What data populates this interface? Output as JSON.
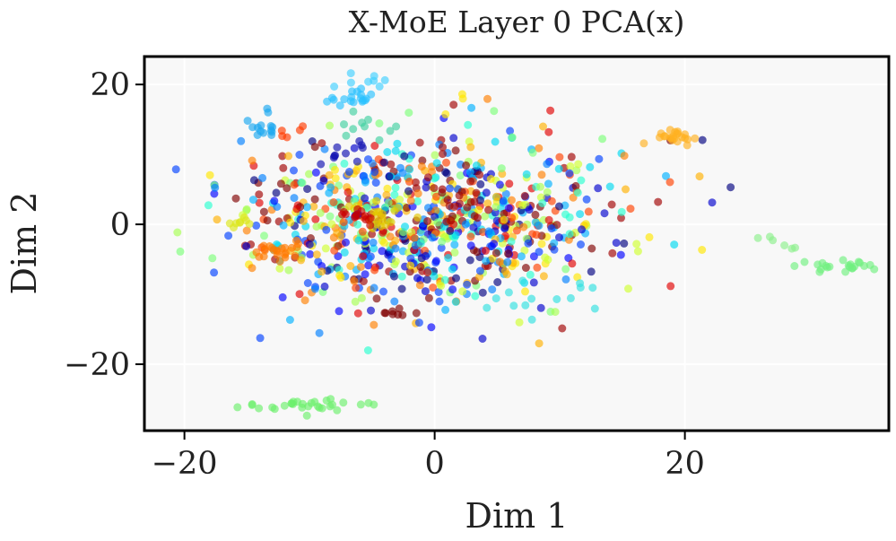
{
  "chart_data": {
    "type": "scatter",
    "title": "X-MoE  Layer 0  PCA(x)",
    "xlabel": "Dim 1",
    "ylabel": "Dim 2",
    "xlim": [
      -23.2,
      36.3
    ],
    "ylim": [
      -29.5,
      24.0
    ],
    "xticks": [
      -20,
      0,
      20
    ],
    "yticks": [
      -20,
      0,
      20
    ],
    "xtick_labels": [
      "−20",
      "0",
      "20"
    ],
    "ytick_labels": [
      "−20",
      "0",
      "20"
    ],
    "grid": true,
    "background": "#f8f8f8",
    "colormap": "jet",
    "point_alpha": 0.65,
    "clusters": [
      {
        "cx": -10,
        "cy": -26,
        "sx": 2.6,
        "sy": 0.6,
        "n": 30,
        "color": "#6cf06c"
      },
      {
        "cx": 32,
        "cy": -5.8,
        "sx": 1.5,
        "sy": 0.7,
        "n": 22,
        "color": "#70f080"
      },
      {
        "cx": 28.5,
        "cy": -2.8,
        "sx": 1.2,
        "sy": 0.5,
        "n": 6,
        "color": "#8cf08c"
      },
      {
        "cx": 19.2,
        "cy": 12.6,
        "sx": 1.0,
        "sy": 0.6,
        "n": 22,
        "color": "#ffb020"
      },
      {
        "cx": -6.8,
        "cy": 18.2,
        "sx": 0.9,
        "sy": 0.5,
        "n": 18,
        "color": "#2ac2ff"
      },
      {
        "cx": -5.0,
        "cy": 20.5,
        "sx": 1.5,
        "sy": 0.5,
        "n": 8,
        "color": "#40d0ff"
      },
      {
        "cx": -13.2,
        "cy": 14.2,
        "sx": 0.9,
        "sy": 0.9,
        "n": 14,
        "color": "#1aa8f0"
      },
      {
        "cx": -12.5,
        "cy": -3.8,
        "sx": 1.1,
        "sy": 1.0,
        "n": 22,
        "color": "#ff7a00"
      },
      {
        "cx": -15.5,
        "cy": 0.2,
        "sx": 0.6,
        "sy": 0.4,
        "n": 8,
        "color": "#dce61a"
      },
      {
        "cx": -11.3,
        "cy": 13.2,
        "sx": 0.5,
        "sy": 0.5,
        "n": 5,
        "color": "#ff3a00"
      },
      {
        "cx": -4.5,
        "cy": 1.0,
        "sx": 1.2,
        "sy": 1.0,
        "n": 20,
        "color": "#e4c800"
      },
      {
        "cx": -6.3,
        "cy": 1.3,
        "sx": 0.8,
        "sy": 0.8,
        "n": 12,
        "color": "#c80000"
      },
      {
        "cx": 2.5,
        "cy": 3.5,
        "sx": 1.8,
        "sy": 1.5,
        "n": 14,
        "color": "#a00000"
      },
      {
        "cx": -7.0,
        "cy": 10.0,
        "sx": 1.5,
        "sy": 1.2,
        "n": 10,
        "color": "#1010b0"
      },
      {
        "cx": 9.0,
        "cy": -10.0,
        "sx": 2.5,
        "sy": 1.2,
        "n": 14,
        "color": "#30e0e0"
      },
      {
        "cx": -3.0,
        "cy": -12.8,
        "sx": 0.8,
        "sy": 0.5,
        "n": 8,
        "color": "#800000"
      },
      {
        "cx": -6.0,
        "cy": 13.0,
        "sx": 1.5,
        "sy": 1.0,
        "n": 10,
        "color": "#40d0a0"
      }
    ],
    "background_cloud": {
      "cx": -0.5,
      "cy": 0.5,
      "sx": 7.5,
      "sy": 6.2,
      "n": 880,
      "palette": [
        "#000080",
        "#0000cd",
        "#0000ff",
        "#0040ff",
        "#0080ff",
        "#00b0ff",
        "#00d8f0",
        "#28ffcf",
        "#7dff7a",
        "#a6ff52",
        "#d0ff30",
        "#ffe600",
        "#ffb000",
        "#ff8000",
        "#ff4000",
        "#e00000",
        "#a00000",
        "#800000"
      ]
    }
  }
}
